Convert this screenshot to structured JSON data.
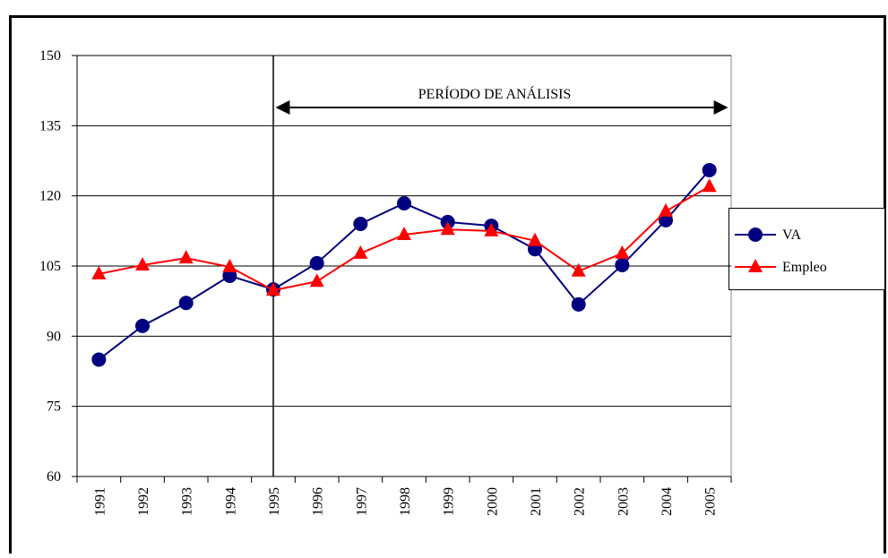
{
  "chart_data": {
    "type": "line",
    "annotation": "PERÍODO DE ANÁLISIS",
    "categories": [
      "1991",
      "1992",
      "1993",
      "1994",
      "1995",
      "1996",
      "1997",
      "1998",
      "1999",
      "2000",
      "2001",
      "2002",
      "2003",
      "2004",
      "2005"
    ],
    "series": [
      {
        "name": "VA",
        "color": "#000080",
        "marker": "circle",
        "values": [
          85,
          92.2,
          97.1,
          102.9,
          100,
          105.6,
          114,
          118.4,
          114.4,
          113.6,
          108.6,
          96.8,
          105.2,
          114.8,
          125.5
        ]
      },
      {
        "name": "Empleo",
        "color": "#ff0000",
        "marker": "triangle",
        "values": [
          103.3,
          105.2,
          106.7,
          104.8,
          99.8,
          101.7,
          107.7,
          111.7,
          112.8,
          112.5,
          110.4,
          103.9,
          107.7,
          116.7,
          122
        ]
      }
    ],
    "ylim": [
      60,
      150
    ],
    "yticks": [
      60,
      75,
      90,
      105,
      120,
      135,
      150
    ],
    "grid": true,
    "legend": "right"
  }
}
